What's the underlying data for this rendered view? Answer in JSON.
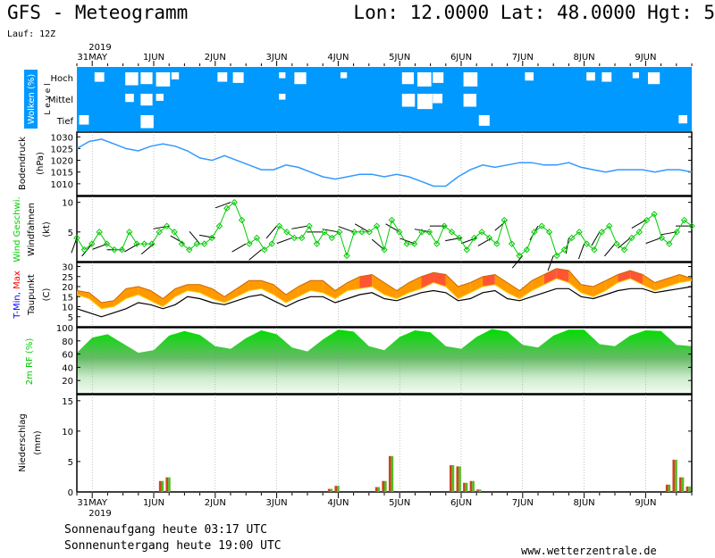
{
  "header": {
    "title": "GFS - Meteogramm",
    "coords": "Lon: 12.0000 Lat: 48.0000 Hgt: 5",
    "run": "Lauf: 12Z"
  },
  "footer": {
    "sunrise": "Sonnenaufgang heute 03:17 UTC",
    "sunset": "Sonnenuntergang heute 19:00 UTC",
    "credit": "www.wetterzentrale.de"
  },
  "colors": {
    "cloud_blue": "#0099ff",
    "green": "#00cc00",
    "orange": "#ff9900",
    "red": "#ff0000",
    "pressure_blue": "#3399ff"
  },
  "chart_data": {
    "type": "line",
    "x_axis": {
      "year_label": "2019",
      "day_labels": [
        "31MAY",
        "1JUN",
        "2JUN",
        "3JUN",
        "4JUN",
        "5JUN",
        "6JUN",
        "7JUN",
        "8JUN",
        "9JUN"
      ],
      "day_start": 1,
      "steps_per_day": 4,
      "n_steps": 40
    },
    "panels": [
      {
        "id": "clouds",
        "ylabel": "Wolken (%)",
        "sublabel": "L e v e l",
        "levels": [
          "Hoch",
          "Mittel",
          "Tief"
        ],
        "series": [
          {
            "name": "Hoch",
            "values": [
              100,
              60,
              100,
              30,
              40,
              20,
              80,
              100,
              100,
              60,
              50,
              100,
              100,
              90,
              40,
              100,
              100,
              90,
              100,
              100,
              100,
              40,
              20,
              50,
              100,
              20,
              100,
              100,
              100,
              70,
              100,
              100,
              100,
              70,
              60,
              100,
              90,
              40,
              100,
              100
            ]
          },
          {
            "name": "Mittel",
            "values": [
              100,
              100,
              100,
              70,
              40,
              80,
              100,
              100,
              100,
              100,
              100,
              100,
              100,
              90,
              100,
              100,
              100,
              100,
              100,
              100,
              100,
              30,
              10,
              60,
              100,
              30,
              100,
              100,
              100,
              100,
              100,
              100,
              100,
              100,
              100,
              100,
              100,
              100,
              100,
              100
            ]
          },
          {
            "name": "Tief",
            "values": [
              60,
              100,
              100,
              100,
              30,
              100,
              100,
              100,
              100,
              100,
              100,
              100,
              100,
              100,
              100,
              100,
              100,
              100,
              100,
              100,
              100,
              100,
              100,
              100,
              100,
              100,
              50,
              100,
              100,
              100,
              100,
              100,
              100,
              100,
              100,
              100,
              100,
              100,
              100,
              70
            ]
          }
        ]
      },
      {
        "id": "pressure",
        "ylabel": "Bodendruck",
        "unit": "(hPa)",
        "ylim": [
          1005,
          1032
        ],
        "yticks": [
          1010,
          1015,
          1020,
          1025,
          1030
        ],
        "series": [
          {
            "name": "Bodendruck",
            "values": [
              1025,
              1028,
              1029,
              1027,
              1025,
              1024,
              1026,
              1027,
              1026,
              1024,
              1021,
              1020,
              1022,
              1020,
              1018,
              1016,
              1016,
              1018,
              1017,
              1015,
              1013,
              1012,
              1013,
              1014,
              1014,
              1013,
              1014,
              1013,
              1011,
              1009,
              1009,
              1013,
              1016,
              1018,
              1017,
              1018,
              1019,
              1019,
              1018,
              1018,
              1019,
              1017,
              1016,
              1015,
              1016,
              1016,
              1016,
              1015,
              1016,
              1016,
              1015
            ]
          }
        ]
      },
      {
        "id": "wind",
        "ylabel": "Wind Geschwi.",
        "sublabel": "Windfahnen",
        "unit": "(kt)",
        "ylim": [
          0,
          11
        ],
        "yticks": [
          5,
          10
        ],
        "series": [
          {
            "name": "Wind Geschwi.",
            "values": [
              4,
              2,
              3,
              5,
              3,
              2,
              2,
              5,
              3,
              3,
              3,
              5,
              6,
              5,
              3,
              2,
              3,
              3,
              4,
              6,
              9,
              10,
              7,
              3,
              4,
              2,
              3,
              6,
              5,
              4,
              4,
              6,
              3,
              5,
              4,
              5,
              1,
              5,
              5,
              5,
              6,
              2,
              7,
              5,
              3,
              3,
              5,
              5,
              3,
              6,
              5,
              4,
              2,
              4,
              5,
              4,
              3,
              7,
              3,
              1,
              2,
              5,
              6,
              5,
              1,
              2,
              4,
              5,
              3,
              2,
              5,
              6,
              3,
              2,
              4,
              5,
              7,
              8,
              4,
              3,
              5,
              7,
              6
            ]
          }
        ],
        "barb_directions": [
          200,
          220,
          250,
          270,
          240,
          230,
          260,
          300,
          320,
          280,
          250,
          240,
          230,
          220,
          250,
          260,
          270,
          280,
          290,
          300,
          310,
          300,
          290,
          280,
          270,
          260,
          250,
          240,
          230,
          220,
          210,
          200,
          190,
          200,
          210,
          220,
          230,
          240,
          250,
          260,
          270
        ]
      },
      {
        "id": "temperature",
        "ylabel_parts": [
          "T-Min,",
          "Max"
        ],
        "sublabel": "Taupunkt",
        "unit": "(C)",
        "ylim": [
          0,
          32
        ],
        "yticks": [
          5,
          10,
          15,
          20,
          25,
          30
        ],
        "series": [
          {
            "name": "T-Min",
            "values": [
              16,
              14,
              9,
              10,
              14,
              16,
              13,
              10,
              15,
              18,
              17,
              14,
              12,
              15,
              18,
              19,
              16,
              12,
              15,
              18,
              17,
              14,
              18,
              19,
              20,
              16,
              14,
              17,
              19,
              22,
              20,
              14,
              17,
              20,
              21,
              17,
              14,
              18,
              21,
              24,
              22,
              17,
              15,
              18,
              22,
              24,
              21,
              18,
              20,
              22,
              23
            ]
          },
          {
            "name": "Max",
            "values": [
              18,
              17,
              12,
              13,
              19,
              20,
              18,
              14,
              19,
              21,
              21,
              19,
              15,
              19,
              23,
              23,
              21,
              16,
              20,
              23,
              23,
              18,
              22,
              25,
              26,
              22,
              18,
              22,
              25,
              27,
              26,
              20,
              22,
              25,
              26,
              22,
              18,
              23,
              26,
              29,
              28,
              21,
              20,
              23,
              26,
              28,
              26,
              22,
              24,
              26,
              24
            ]
          },
          {
            "name": "Taupunkt",
            "values": [
              9,
              7,
              5,
              7,
              9,
              12,
              11,
              9,
              11,
              15,
              14,
              12,
              11,
              13,
              15,
              16,
              13,
              10,
              13,
              15,
              15,
              12,
              14,
              16,
              17,
              14,
              13,
              15,
              17,
              18,
              17,
              13,
              14,
              17,
              18,
              14,
              13,
              15,
              17,
              19,
              19,
              15,
              14,
              16,
              18,
              19,
              19,
              17,
              18,
              19,
              20
            ]
          }
        ]
      },
      {
        "id": "humidity",
        "ylabel": "2m RF (%)",
        "ylim": [
          0,
          100
        ],
        "yticks": [
          20,
          40,
          60,
          80,
          100
        ],
        "series": [
          {
            "name": "2m RF",
            "values": [
              62,
              85,
              90,
              76,
              62,
              66,
              88,
              95,
              89,
              72,
              68,
              84,
              96,
              90,
              70,
              64,
              82,
              97,
              94,
              72,
              66,
              86,
              96,
              93,
              72,
              68,
              86,
              98,
              94,
              74,
              70,
              88,
              97,
              97,
              75,
              72,
              88,
              96,
              95,
              74,
              72
            ]
          }
        ]
      },
      {
        "id": "precip",
        "ylabel": "Niederschlag",
        "unit": "(mm)",
        "ylim": [
          0,
          16
        ],
        "yticks": [
          0,
          5,
          10,
          15
        ],
        "series": [
          {
            "name": "Niederschlag",
            "values": [
              0,
              0,
              0,
              0,
              0,
              0,
              0,
              0,
              0,
              0,
              0,
              0,
              1.8,
              2.4,
              0,
              0,
              0,
              0,
              0,
              0,
              0,
              0,
              0,
              0,
              0,
              0,
              0,
              0,
              0,
              0,
              0,
              0,
              0,
              0,
              0,
              0,
              0,
              0.5,
              1,
              0,
              0,
              0,
              0,
              0,
              0.8,
              1.8,
              5.9,
              0,
              0,
              0,
              0,
              0,
              0,
              0,
              0,
              4.4,
              4.2,
              1.5,
              1.8,
              0.4,
              0,
              0,
              0,
              0,
              0,
              0,
              0,
              0,
              0,
              0,
              0,
              0,
              0,
              0,
              0,
              0,
              0,
              0,
              0,
              0,
              0,
              0,
              0,
              0,
              0,
              0,
              0,
              1.2,
              5.3,
              2.4,
              0.9
            ]
          }
        ]
      }
    ]
  }
}
